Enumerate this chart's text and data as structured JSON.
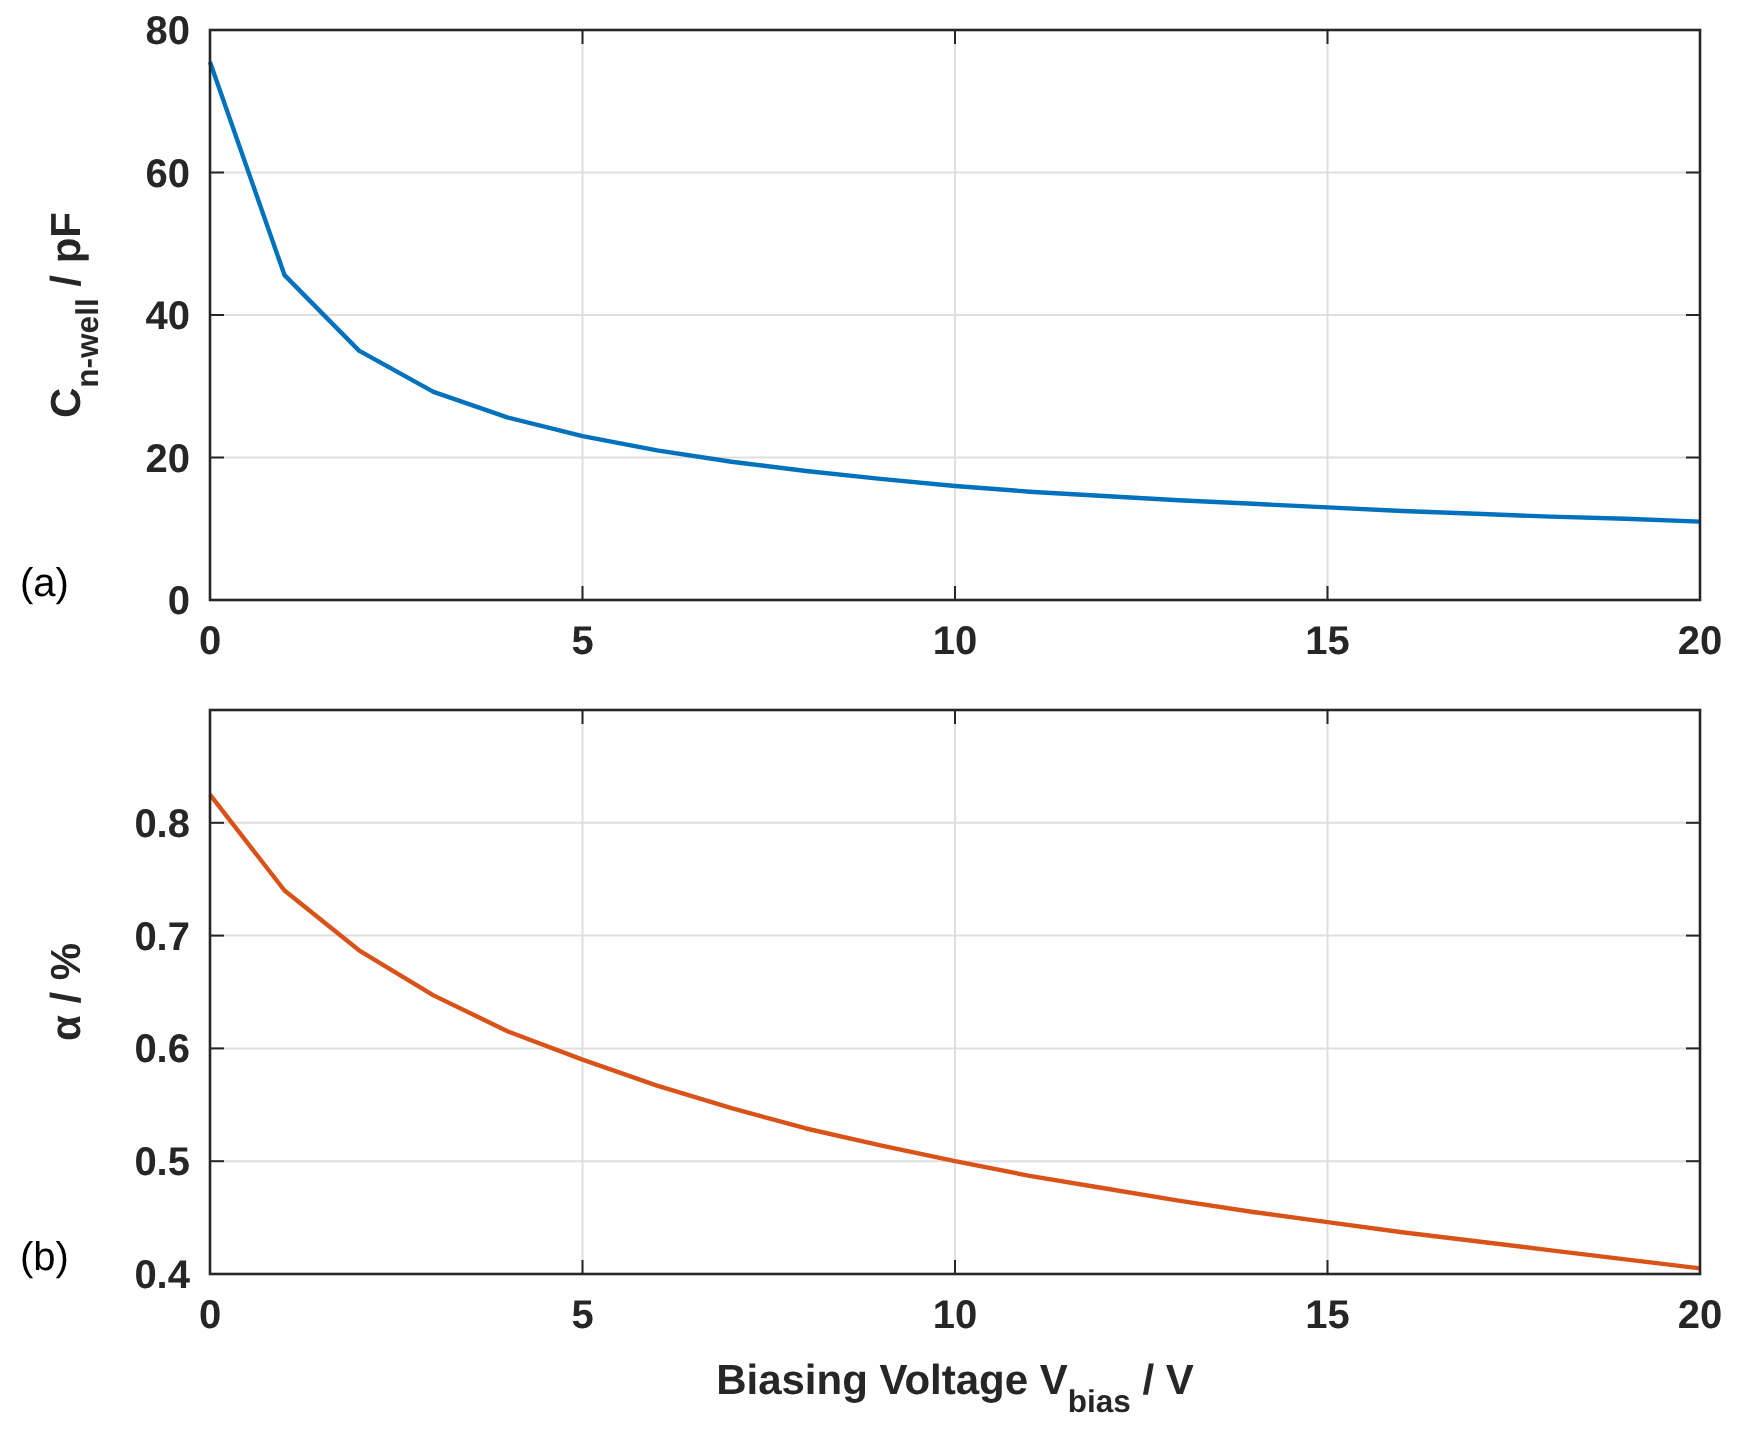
{
  "chart_data": [
    {
      "type": "line",
      "ylabel": "C$_{n-well}$ / pF",
      "annotations": [
        "(a)"
      ],
      "x": [
        0,
        1,
        2,
        3,
        4,
        5,
        6,
        7,
        8,
        9,
        10,
        11,
        12,
        13,
        14,
        15,
        16,
        17,
        18,
        19,
        20
      ],
      "series": [
        {
          "color": "#0072bd",
          "values": [
            75.5,
            45.6,
            35,
            29.2,
            25.6,
            23,
            21,
            19.4,
            18.1,
            17,
            16,
            15.2,
            14.6,
            14,
            13.5,
            13,
            12.5,
            12.1,
            11.7,
            11.4,
            11
          ]
        }
      ],
      "xlim": [
        0,
        20
      ],
      "xticks": [
        0,
        5,
        10,
        15,
        20
      ],
      "ylim": [
        0,
        80
      ],
      "yticks": [
        0,
        20,
        40,
        60,
        80
      ],
      "grid": true
    },
    {
      "type": "line",
      "ylabel": "α / %",
      "xlabel": "Biasing Voltage V$_{bias}$ / V",
      "annotations": [
        "(b)"
      ],
      "x": [
        0,
        1,
        2,
        3,
        4,
        5,
        6,
        7,
        8,
        9,
        10,
        11,
        12,
        13,
        14,
        15,
        16,
        17,
        18,
        19,
        20
      ],
      "series": [
        {
          "color": "#d95319",
          "values": [
            0.825,
            0.74,
            0.687,
            0.647,
            0.615,
            0.59,
            0.567,
            0.547,
            0.529,
            0.514,
            0.5,
            0.487,
            0.476,
            0.465,
            0.455,
            0.446,
            0.437,
            0.429,
            0.421,
            0.413,
            0.405
          ]
        }
      ],
      "xlim": [
        0,
        20
      ],
      "xticks": [
        0,
        5,
        10,
        15,
        20
      ],
      "ylim": [
        0.4,
        0.9
      ],
      "yticks": [
        0.4,
        0.5,
        0.6,
        0.7,
        0.8
      ],
      "grid": true
    }
  ]
}
